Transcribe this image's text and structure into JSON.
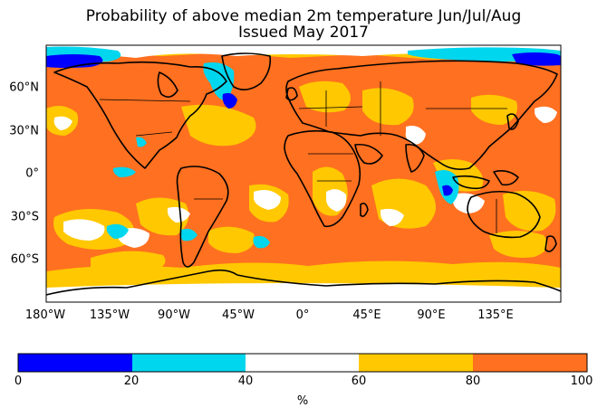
{
  "title_line1": "Probability of above median 2m temperature Jun/Jul/Aug",
  "title_line2": "Issued May 2017",
  "map": {
    "projection": "equirectangular",
    "base_color": "#ff7020",
    "coastline_color": "#000000",
    "lon_ticks": [
      "180°W",
      "135°W",
      "90°W",
      "45°W",
      "0°",
      "45°E",
      "90°E",
      "135°E"
    ],
    "lat_ticks": [
      "60°N",
      "30°N",
      "0°",
      "30°S",
      "60°S"
    ]
  },
  "colorbar": {
    "unit": "%",
    "ticks": [
      "0",
      "20",
      "40",
      "60",
      "80",
      "100"
    ],
    "bins": [
      {
        "range": [
          0,
          20
        ],
        "color": "#0000ff"
      },
      {
        "range": [
          20,
          40
        ],
        "color": "#00d6ee"
      },
      {
        "range": [
          40,
          60
        ],
        "color": "#ffffff"
      },
      {
        "range": [
          60,
          80
        ],
        "color": "#ffc800"
      },
      {
        "range": [
          80,
          100
        ],
        "color": "#ff7020"
      }
    ]
  }
}
